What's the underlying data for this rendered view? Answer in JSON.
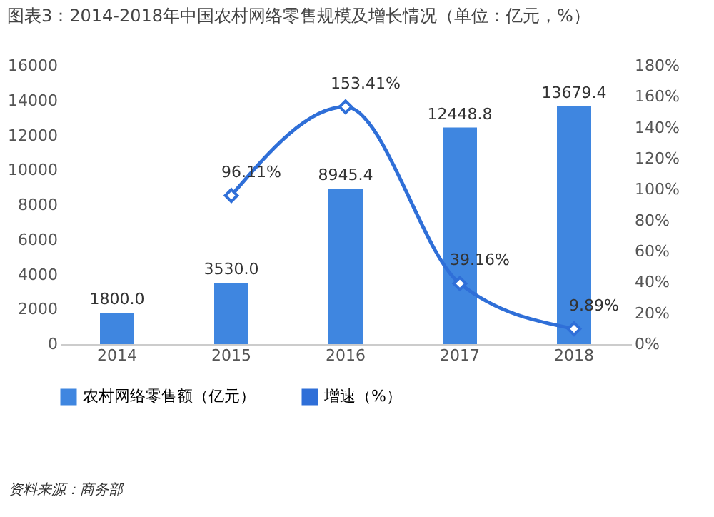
{
  "chart_data": {
    "type": "bar",
    "title": "图表3：2014-2018年中国农村网络零售规模及增长情况（单位：亿元，%）",
    "categories": [
      "2014",
      "2015",
      "2016",
      "2017",
      "2018"
    ],
    "series": [
      {
        "name": "农村网络零售额（亿元）",
        "color": "#3f86e0",
        "values": [
          1800,
          3530,
          8945.4,
          12448.8,
          13679.4
        ],
        "value_labels": [
          "1800.0",
          "3530.0",
          "8945.4",
          "12448.8",
          "13679.4"
        ]
      },
      {
        "name": "增速（%）",
        "type": "line",
        "axis": "y2",
        "color": "#2f6fd8",
        "marker": "diamond",
        "values": [
          null,
          96.11,
          153.41,
          39.16,
          9.89
        ],
        "value_labels": [
          null,
          "96.11%",
          "153.41%",
          "39.16%",
          "9.89%"
        ]
      }
    ],
    "ylim": [
      0,
      16000
    ],
    "yticks": [
      0,
      2000,
      4000,
      6000,
      8000,
      10000,
      12000,
      14000,
      16000
    ],
    "y2lim": [
      0,
      180
    ],
    "y2ticks": [
      {
        "value": 0,
        "label": "0%"
      },
      {
        "value": 20,
        "label": "20%"
      },
      {
        "value": 40,
        "label": "40%"
      },
      {
        "value": 60,
        "label": "60%"
      },
      {
        "value": 80,
        "label": "80%"
      },
      {
        "value": 100,
        "label": "100%"
      },
      {
        "value": 120,
        "label": "120%"
      },
      {
        "value": 140,
        "label": "140%"
      },
      {
        "value": 160,
        "label": "160%"
      },
      {
        "value": 180,
        "label": "180%"
      }
    ],
    "legend": "bottom",
    "grid": false,
    "annotations": [
      "资料来源：商务部"
    ]
  }
}
